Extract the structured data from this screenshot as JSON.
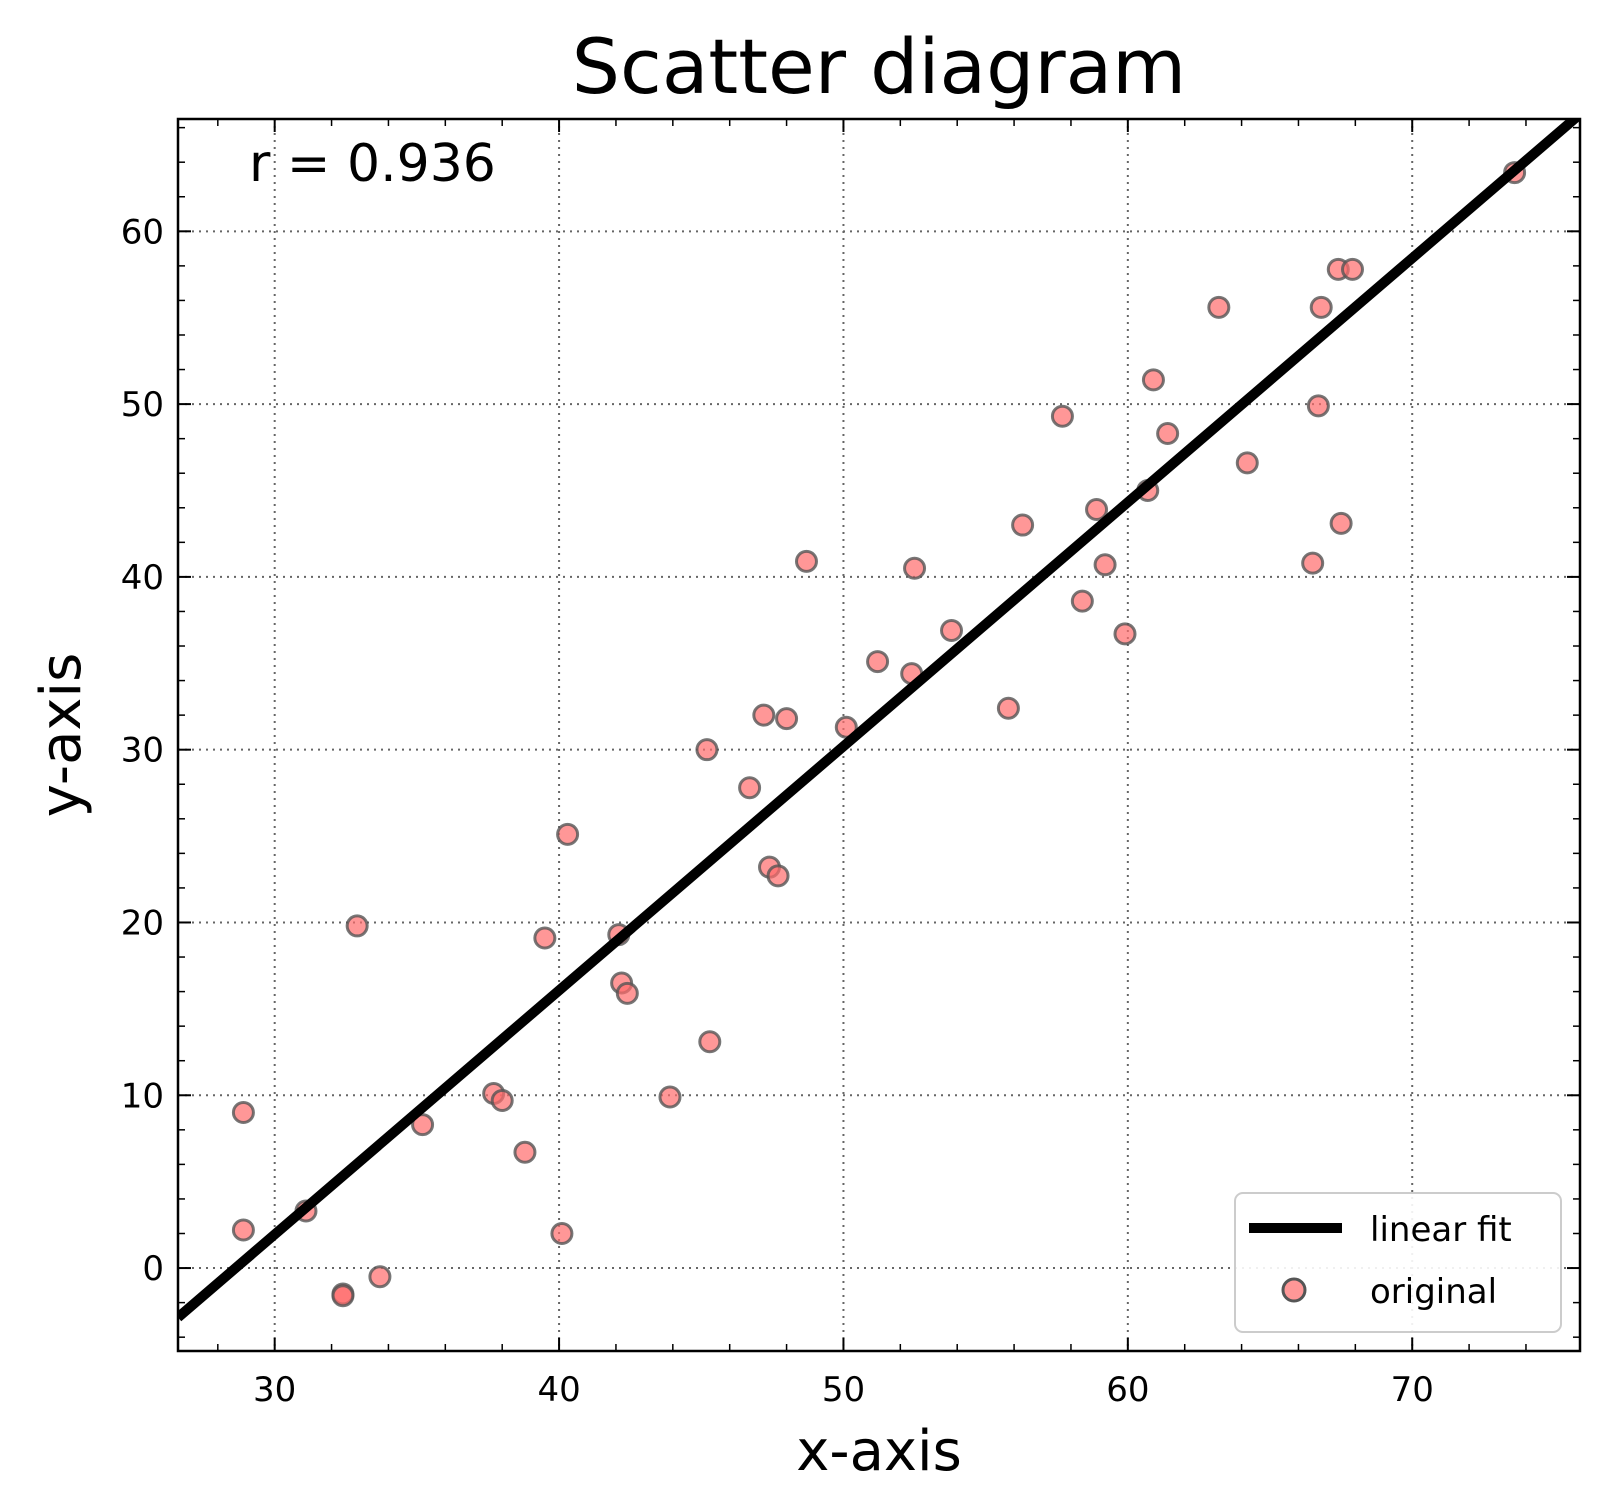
{
  "chart_data": {
    "type": "scatter",
    "title": "Scatter diagram",
    "xlabel": "x-axis",
    "ylabel": "y-axis",
    "xlim": [
      26.6,
      75.9
    ],
    "ylim": [
      -4.8,
      66.5
    ],
    "xticks": [
      30,
      40,
      50,
      60,
      70
    ],
    "yticks": [
      0,
      10,
      20,
      30,
      40,
      50,
      60
    ],
    "xtick_labels": [
      "30",
      "40",
      "50",
      "60",
      "70"
    ],
    "ytick_labels": [
      "0",
      "10",
      "20",
      "30",
      "40",
      "50",
      "60"
    ],
    "grid": true,
    "legend_position": "bottom-right",
    "annotation": "r = 0.936",
    "series": [
      {
        "name": "original",
        "kind": "scatter",
        "color": "#ff6b6b",
        "edge_color": "#555555",
        "points": [
          [
            28.9,
            9.0
          ],
          [
            28.9,
            2.2
          ],
          [
            31.1,
            3.3
          ],
          [
            32.4,
            -1.5
          ],
          [
            32.4,
            -1.6
          ],
          [
            32.9,
            19.8
          ],
          [
            33.7,
            -0.5
          ],
          [
            35.2,
            8.3
          ],
          [
            37.7,
            10.1
          ],
          [
            38.0,
            9.7
          ],
          [
            38.8,
            6.7
          ],
          [
            39.5,
            19.1
          ],
          [
            40.1,
            2.0
          ],
          [
            40.3,
            25.1
          ],
          [
            42.1,
            19.3
          ],
          [
            42.2,
            16.5
          ],
          [
            42.4,
            15.9
          ],
          [
            43.9,
            9.9
          ],
          [
            45.2,
            30.0
          ],
          [
            45.3,
            13.1
          ],
          [
            46.7,
            27.8
          ],
          [
            47.2,
            32.0
          ],
          [
            47.4,
            23.2
          ],
          [
            47.7,
            22.7
          ],
          [
            48.0,
            31.8
          ],
          [
            48.7,
            40.9
          ],
          [
            50.1,
            31.3
          ],
          [
            51.2,
            35.1
          ],
          [
            52.4,
            34.4
          ],
          [
            52.5,
            40.5
          ],
          [
            53.8,
            36.9
          ],
          [
            55.8,
            32.4
          ],
          [
            56.3,
            43.0
          ],
          [
            57.7,
            49.3
          ],
          [
            58.4,
            38.6
          ],
          [
            58.9,
            43.9
          ],
          [
            59.2,
            40.7
          ],
          [
            59.9,
            36.7
          ],
          [
            60.7,
            45.0
          ],
          [
            60.9,
            51.4
          ],
          [
            61.4,
            48.3
          ],
          [
            63.2,
            55.6
          ],
          [
            64.2,
            46.6
          ],
          [
            66.5,
            40.8
          ],
          [
            66.7,
            49.9
          ],
          [
            66.8,
            55.6
          ],
          [
            67.4,
            57.8
          ],
          [
            67.5,
            43.1
          ],
          [
            67.9,
            57.8
          ],
          [
            73.6,
            63.4
          ]
        ]
      },
      {
        "name": "linear fit",
        "kind": "line",
        "color": "#000000",
        "slope": 1.4125,
        "intercept": -40.43
      }
    ]
  }
}
